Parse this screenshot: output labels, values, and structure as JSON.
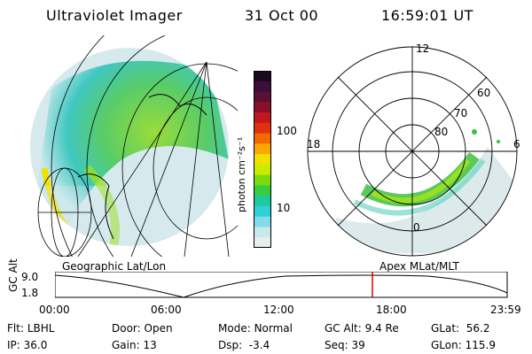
{
  "header": {
    "instrument": "Ultraviolet Imager",
    "date": "31 Oct 00",
    "time": "16:59:01 UT"
  },
  "colorbar": {
    "unit_label": "photon cm⁻²s⁻¹",
    "ticks": [
      "100",
      "10"
    ],
    "colors": [
      "#1a0a1e",
      "#3a0f3a",
      "#5a1030",
      "#8a1028",
      "#c01820",
      "#e03010",
      "#f06a00",
      "#f8a800",
      "#f4e000",
      "#c8ec00",
      "#7adc10",
      "#38cc40",
      "#20c8a0",
      "#30d0d8",
      "#80dce8",
      "#c8e8ee",
      "#e8eeee"
    ]
  },
  "geo_panel": {
    "label": "Geographic Lat/Lon"
  },
  "polar_panel": {
    "label": "Apex MLat/MLT",
    "mlt_labels": [
      "12",
      "18",
      "6",
      "0"
    ],
    "lat_labels": [
      "60",
      "70",
      "80"
    ]
  },
  "altitude_plot": {
    "ylabel": "GC Alt",
    "y_ticks": [
      "9.0",
      "1.8"
    ],
    "x_ticks": [
      "00:00",
      "06:00",
      "12:00",
      "18:00",
      "23:59"
    ],
    "marker_time": "16:59",
    "marker_color": "#e00000"
  },
  "status": {
    "flt_label": "Flt:",
    "flt_value": "LBHL",
    "ip_label": "IP:",
    "ip_value": "36.0",
    "door_label": "Door:",
    "door_value": "Open",
    "gain_label": "Gain:",
    "gain_value": "13",
    "mode_label": "Mode:",
    "mode_value": "Normal",
    "dsp_label": "Dsp:",
    "dsp_value": "-3.4",
    "gcalt_label": "GC Alt:",
    "gcalt_value": "9.4 Re",
    "seq_label": "Seq:",
    "seq_value": "39",
    "glat_label": "GLat:",
    "glat_value": "56.2",
    "glon_label": "GLon:",
    "glon_value": "115.9"
  }
}
